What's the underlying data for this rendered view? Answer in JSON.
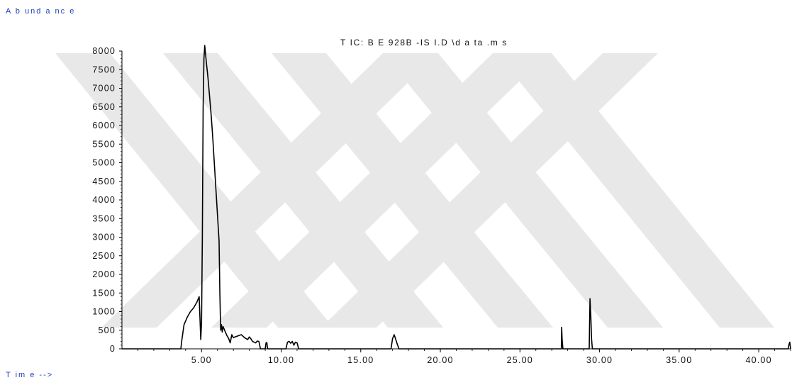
{
  "chart_data": {
    "type": "line",
    "title": "T IC: B E 928B -IS I.D \\d a ta .m s",
    "ylabel": "A b und a nc e",
    "xlabel": "T im e -->",
    "xlim": [
      0,
      42
    ],
    "ylim": [
      0,
      8000
    ],
    "x_ticks": [
      {
        "value": 5,
        "label": "5.00"
      },
      {
        "value": 10,
        "label": "10.00"
      },
      {
        "value": 15,
        "label": "15.00"
      },
      {
        "value": 20,
        "label": "20.00"
      },
      {
        "value": 25,
        "label": "25.00"
      },
      {
        "value": 30,
        "label": "30.00"
      },
      {
        "value": 35,
        "label": "35.00"
      },
      {
        "value": 40,
        "label": "40.00"
      }
    ],
    "y_ticks": [
      {
        "value": 0,
        "label": "0"
      },
      {
        "value": 500,
        "label": "500"
      },
      {
        "value": 1000,
        "label": "1000"
      },
      {
        "value": 1500,
        "label": "1500"
      },
      {
        "value": 2000,
        "label": "2000"
      },
      {
        "value": 2500,
        "label": "2500"
      },
      {
        "value": 3000,
        "label": "3000"
      },
      {
        "value": 3500,
        "label": "3500"
      },
      {
        "value": 4000,
        "label": "4000"
      },
      {
        "value": 4500,
        "label": "4500"
      },
      {
        "value": 5000,
        "label": "5000"
      },
      {
        "value": 5500,
        "label": "5500"
      },
      {
        "value": 6000,
        "label": "6000"
      },
      {
        "value": 6500,
        "label": "6500"
      },
      {
        "value": 7000,
        "label": "7000"
      },
      {
        "value": 7500,
        "label": "7500"
      },
      {
        "value": 8000,
        "label": "8000"
      }
    ],
    "series": [
      {
        "color": "#000000",
        "x": [
          0,
          3.7,
          3.75,
          3.9,
          4.1,
          4.3,
          4.5,
          4.7,
          4.85,
          4.95,
          5.0,
          5.05,
          5.1,
          5.15,
          5.2,
          5.3,
          5.4,
          5.5,
          5.6,
          5.7,
          5.8,
          5.9,
          6.0,
          6.1,
          6.15,
          6.2,
          6.25,
          6.3,
          6.35,
          6.5,
          6.6,
          6.7,
          6.8,
          6.9,
          7.0,
          7.1,
          7.3,
          7.5,
          7.7,
          7.9,
          8.0,
          8.1,
          8.2,
          8.3,
          8.4,
          8.5,
          8.6,
          8.7,
          9.0,
          9.05,
          9.1,
          9.15,
          10.3,
          10.4,
          10.5,
          10.6,
          10.7,
          10.8,
          10.9,
          11.0,
          11.1,
          16.9,
          17.0,
          17.1,
          17.2,
          17.3,
          17.4,
          27.6,
          27.62,
          27.65,
          27.7,
          29.35,
          29.4,
          29.45,
          29.5,
          29.55,
          41.85,
          41.9,
          41.95,
          42.0
        ],
        "y": [
          0,
          0,
          200,
          650,
          850,
          1000,
          1100,
          1250,
          1400,
          250,
          700,
          3000,
          6500,
          7800,
          8150,
          7700,
          7300,
          6800,
          6300,
          5700,
          5000,
          4300,
          3600,
          2900,
          1500,
          500,
          650,
          450,
          600,
          450,
          350,
          280,
          160,
          380,
          300,
          320,
          350,
          380,
          300,
          250,
          320,
          270,
          200,
          180,
          160,
          210,
          200,
          0,
          0,
          160,
          170,
          0,
          0,
          180,
          200,
          150,
          200,
          100,
          180,
          160,
          0,
          0,
          280,
          380,
          250,
          120,
          0,
          0,
          580,
          250,
          0,
          0,
          1350,
          900,
          250,
          0,
          0,
          120,
          180,
          0
        ]
      }
    ]
  }
}
